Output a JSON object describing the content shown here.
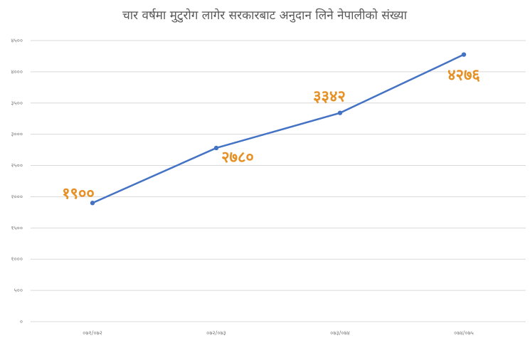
{
  "chart_data": {
    "type": "line",
    "title": "चार वर्षमा मुटुरोग लागेर सरकारबाट अनुदान लिने नेपालीको संख्या",
    "categories": [
      "०७१/०७२",
      "०७२/०७३",
      "०७३/०७४",
      "०७४/०७५"
    ],
    "series": [
      {
        "color": "#4472c4",
        "label_color": "#e69125",
        "values": [
          1900,
          2780,
          3342,
          4276
        ],
        "value_labels": [
          "१९००",
          "२७८०",
          "३३४२",
          "४२७६"
        ]
      }
    ],
    "ylim": [
      0,
      4500
    ],
    "yticks": [
      {
        "value": 0,
        "label": "०"
      },
      {
        "value": 500,
        "label": "५००"
      },
      {
        "value": 1000,
        "label": "१०००"
      },
      {
        "value": 1500,
        "label": "१५००"
      },
      {
        "value": 2000,
        "label": "२०००"
      },
      {
        "value": 2500,
        "label": "२५००"
      },
      {
        "value": 3000,
        "label": "३०००"
      },
      {
        "value": 3500,
        "label": "३५००"
      },
      {
        "value": 4000,
        "label": "४०००"
      },
      {
        "value": 4500,
        "label": "४५००"
      }
    ],
    "grid": true
  }
}
